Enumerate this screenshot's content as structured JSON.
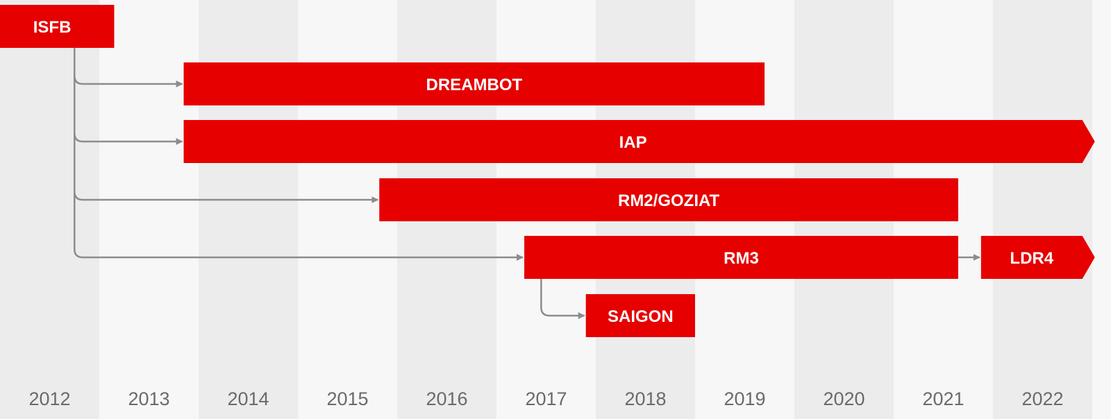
{
  "timeline": {
    "years": [
      "2012",
      "2013",
      "2014",
      "2015",
      "2016",
      "2017",
      "2018",
      "2019",
      "2020",
      "2021",
      "2022"
    ],
    "colors": {
      "bar": "#e60000",
      "connector": "#8c8c8c",
      "stripe_dark": "#ececec",
      "stripe_light": "#f7f7f7",
      "year_text": "#6a6a6a",
      "bar_text": "#ffffff"
    },
    "bars": [
      {
        "id": "isfb",
        "label": "ISFB",
        "start": 2011.9,
        "end": 2013.15,
        "row": 0,
        "arrow_end": false
      },
      {
        "id": "dreambot",
        "label": "DREAMBOT",
        "start": 2013.85,
        "end": 2019.7,
        "row": 1,
        "arrow_end": false
      },
      {
        "id": "iap",
        "label": "IAP",
        "start": 2013.85,
        "end": 2022.9,
        "row": 2,
        "arrow_end": true
      },
      {
        "id": "rm2-goziat",
        "label": "RM2/GOZIAT",
        "start": 2015.82,
        "end": 2021.65,
        "row": 3,
        "arrow_end": false
      },
      {
        "id": "rm3",
        "label": "RM3",
        "start": 2017.28,
        "end": 2021.65,
        "row": 4,
        "arrow_end": false
      },
      {
        "id": "ldr4",
        "label": "LDR4",
        "start": 2021.88,
        "end": 2022.9,
        "row": 4,
        "arrow_end": true
      },
      {
        "id": "saigon",
        "label": "SAIGON",
        "start": 2017.9,
        "end": 2019.0,
        "row": 5,
        "arrow_end": false
      }
    ],
    "connectors": [
      {
        "id": "isfb-to-dreambot",
        "from": "isfb",
        "to": "dreambot"
      },
      {
        "id": "isfb-to-iap",
        "from": "isfb",
        "to": "iap"
      },
      {
        "id": "isfb-to-rm2",
        "from": "isfb",
        "to": "rm2-goziat"
      },
      {
        "id": "isfb-to-rm3",
        "from": "isfb",
        "to": "rm3"
      },
      {
        "id": "rm3-to-ldr4",
        "from": "rm3",
        "to": "ldr4"
      },
      {
        "id": "rm3-to-saigon",
        "from": "rm3",
        "to": "saigon"
      }
    ]
  }
}
